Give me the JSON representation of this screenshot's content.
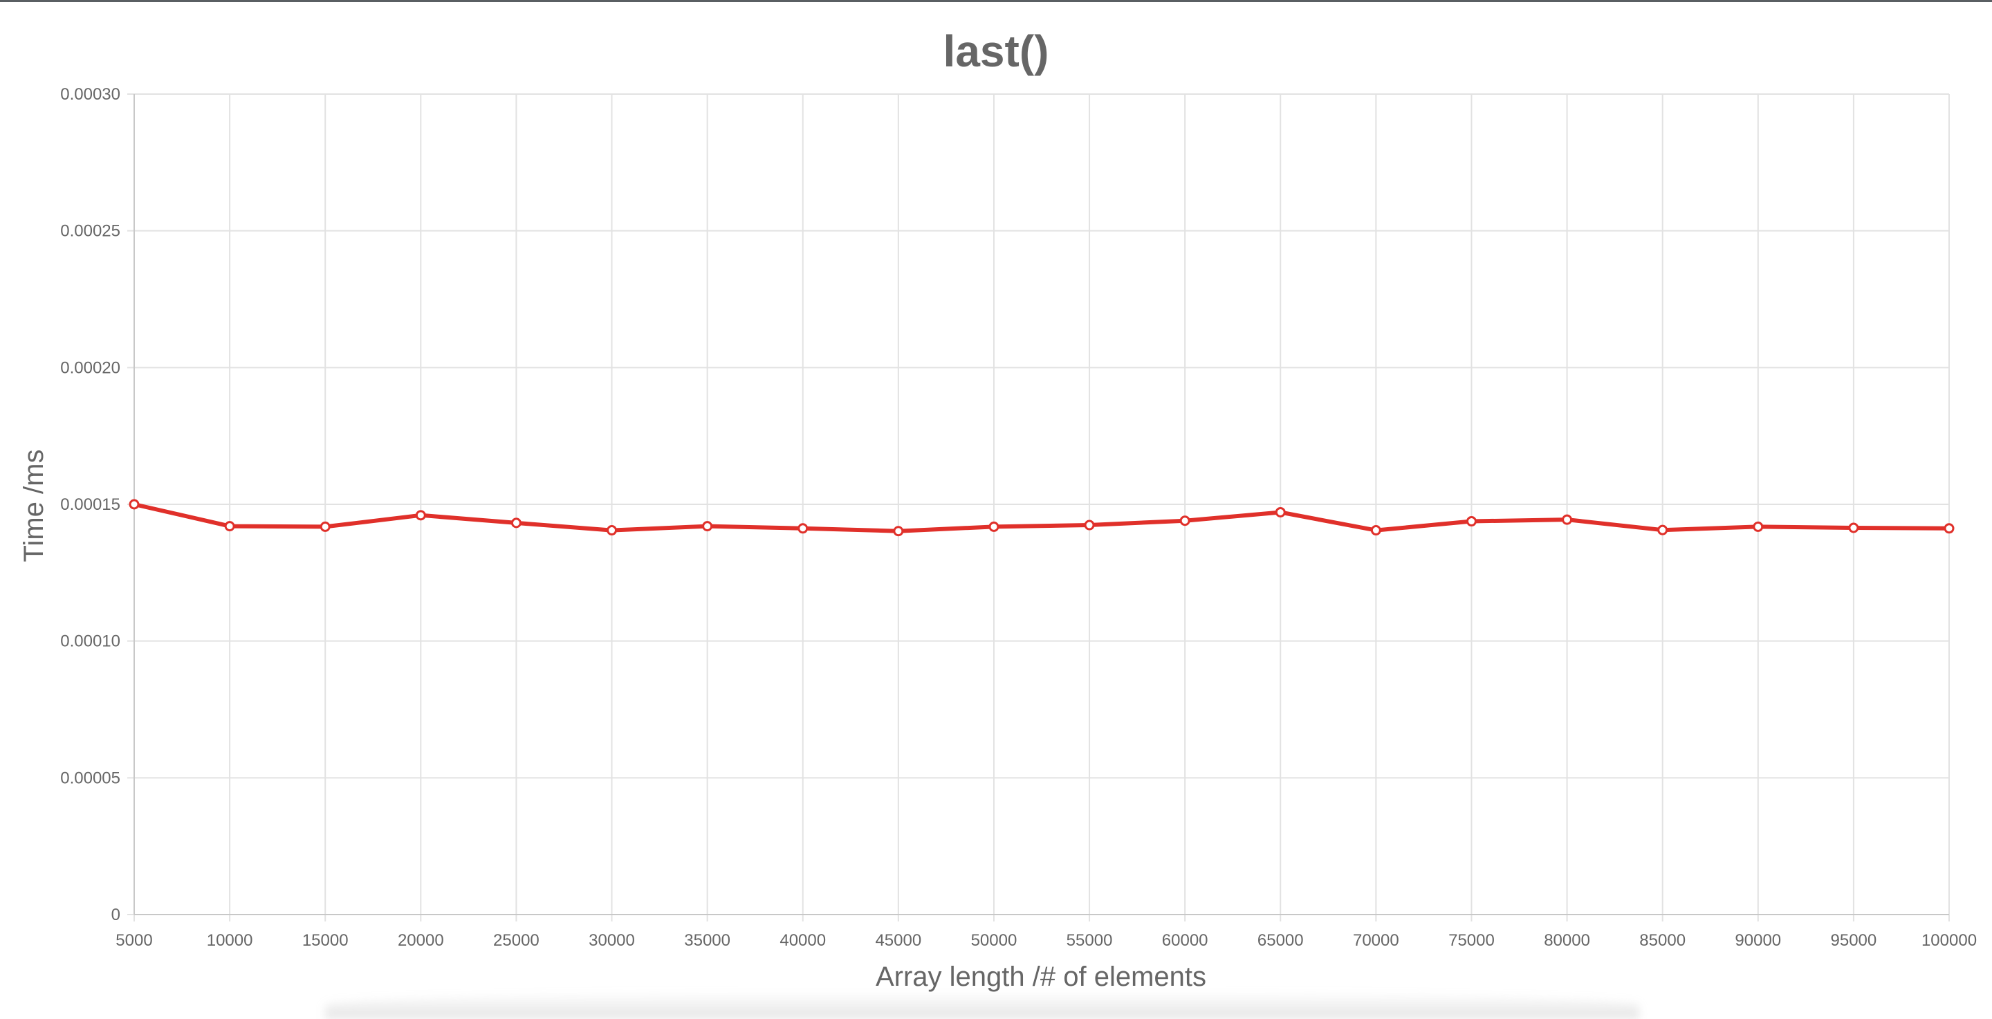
{
  "colors": {
    "series": "#e0302a",
    "grid": "#e2e2e2",
    "axis": "#c8c8c8",
    "text": "#666666"
  },
  "chart_data": {
    "type": "line",
    "title": "last()",
    "xlabel": "Array length /# of elements",
    "ylabel": "Time /ms",
    "ylim": [
      0,
      0.0003
    ],
    "yticks": [
      "0",
      "0.00005",
      "0.00010",
      "0.00015",
      "0.00020",
      "0.00025",
      "0.00030"
    ],
    "grid": true,
    "categories": [
      "5000",
      "10000",
      "15000",
      "20000",
      "25000",
      "30000",
      "35000",
      "40000",
      "45000",
      "50000",
      "55000",
      "60000",
      "65000",
      "70000",
      "75000",
      "80000",
      "85000",
      "90000",
      "95000",
      "100000"
    ],
    "series": [
      {
        "values": [
          0.00015,
          0.000142,
          0.0001418,
          0.000146,
          0.0001432,
          0.0001405,
          0.000142,
          0.0001412,
          0.0001402,
          0.0001418,
          0.0001424,
          0.000144,
          0.0001471,
          0.0001405,
          0.0001438,
          0.0001444,
          0.0001406,
          0.0001418,
          0.0001414,
          0.0001412
        ]
      }
    ]
  }
}
